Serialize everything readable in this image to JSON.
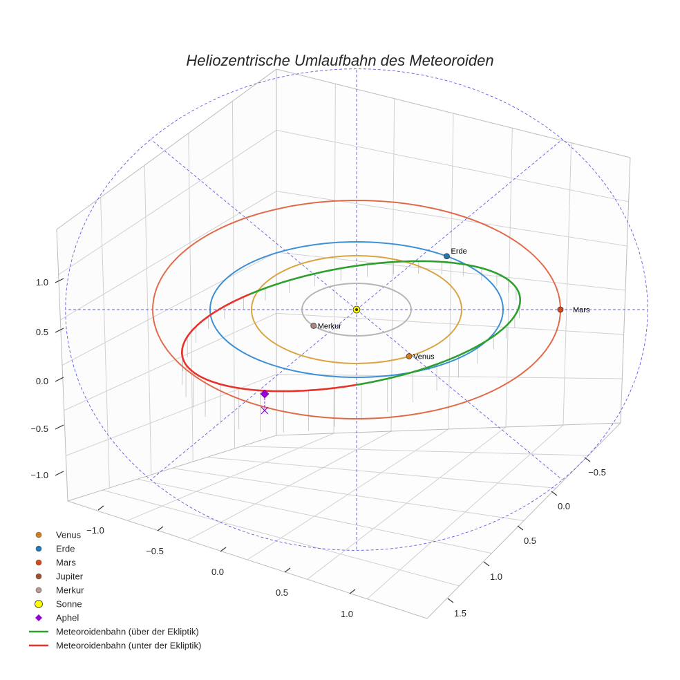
{
  "chart_data": {
    "type": "3d-orbit",
    "title": "Heliozentrische Umlaufbahn des Meteoroiden",
    "axis_ticks": {
      "z": [
        "1.0",
        "0.5",
        "0.0",
        "−0.5",
        "−1.0"
      ],
      "x": [
        "−1.0",
        "−0.5",
        "0.0",
        "0.5",
        "1.0"
      ],
      "y": [
        "−0.5",
        "0.0",
        "0.5",
        "1.0",
        "1.5"
      ]
    },
    "planets": [
      {
        "name": "Merkur",
        "label": "Merkur",
        "orbit_radius_au": 0.39,
        "angle_deg": 218,
        "color": "#b5b5b5",
        "marker": "#a88a80"
      },
      {
        "name": "Venus",
        "label": "Venus",
        "orbit_radius_au": 0.72,
        "angle_deg": 300,
        "color": "#d9a441",
        "marker": "#d2801e"
      },
      {
        "name": "Erde",
        "label": "Erde",
        "orbit_radius_au": 1.0,
        "angle_deg": 52,
        "color": "#3d8fd6",
        "marker": "#1f77b4"
      },
      {
        "name": "Mars",
        "label": "Mars",
        "orbit_radius_au": 1.52,
        "angle_deg": 0,
        "color": "#e06a4a",
        "marker": "#d9481c"
      }
    ],
    "meteoroid_orbit": {
      "above_label": "Meteoroidenbahn (über der Ekliptik)",
      "below_label": "Meteoroidenbahn (unter der Ekliptik)",
      "above_color": "#2ca02c",
      "below_color": "#e8322a"
    },
    "aphel": {
      "label": "Aphel",
      "color": "#9400d3"
    },
    "sun": {
      "label": "Sonne",
      "color": "#ffff00"
    },
    "legend": {
      "position": "bottom-left",
      "entries": [
        {
          "label": "Venus",
          "kind": "dot",
          "color": "#d2801e"
        },
        {
          "label": "Erde",
          "kind": "dot",
          "color": "#1f77b4"
        },
        {
          "label": "Mars",
          "kind": "dot",
          "color": "#d9481c"
        },
        {
          "label": "Jupiter",
          "kind": "dot",
          "color": "#a0522d"
        },
        {
          "label": "Merkur",
          "kind": "dot",
          "color": "#b89a90"
        },
        {
          "label": "Sonne",
          "kind": "sun",
          "color": "#ffff00"
        },
        {
          "label": "Aphel",
          "kind": "diamond",
          "color": "#9400d3"
        },
        {
          "label": "Meteoroidenbahn (über der Ekliptik)",
          "kind": "line",
          "color": "#2ca02c"
        },
        {
          "label": "Meteoroidenbahn (unter der Ekliptik)",
          "kind": "line",
          "color": "#e8322a"
        }
      ]
    }
  }
}
